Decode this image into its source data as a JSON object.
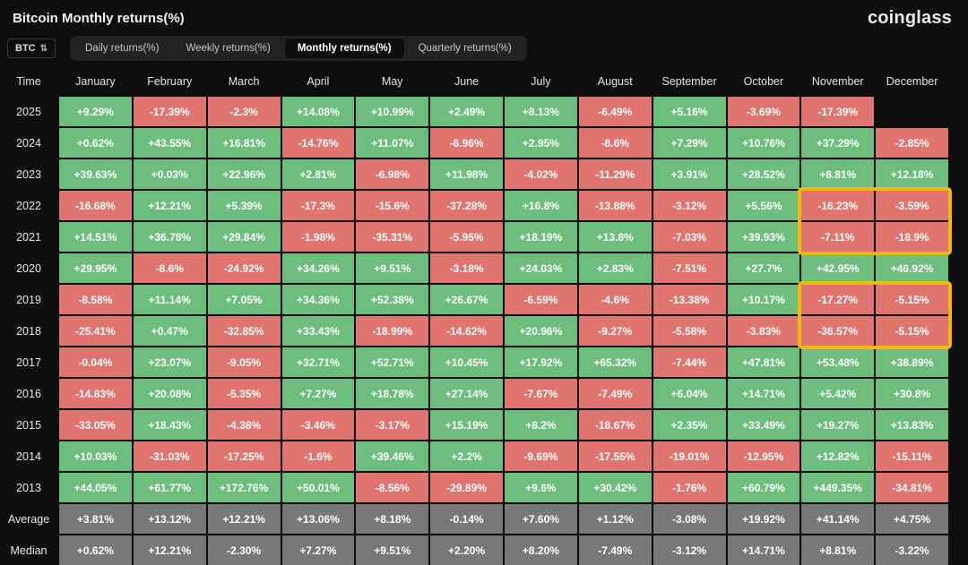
{
  "header": {
    "title": "Bitcoin Monthly returns(%)",
    "logo": "coinglass"
  },
  "controls": {
    "symbol": "BTC",
    "tabs": [
      {
        "label": "Daily returns(%)",
        "active": false
      },
      {
        "label": "Weekly returns(%)",
        "active": false
      },
      {
        "label": "Monthly returns(%)",
        "active": true
      },
      {
        "label": "Quarterly returns(%)",
        "active": false
      }
    ]
  },
  "colors": {
    "positive": "#6dbd7d",
    "negative": "#e0746e",
    "summary": "#787878",
    "highlight": "#f0b90b"
  },
  "table": {
    "type": "table",
    "columns": [
      "Time",
      "January",
      "February",
      "March",
      "April",
      "May",
      "June",
      "July",
      "August",
      "September",
      "October",
      "November",
      "December"
    ],
    "rows": [
      {
        "label": "2025",
        "values": [
          "+9.29%",
          "-17.39%",
          "-2.3%",
          "+14.08%",
          "+10.99%",
          "+2.49%",
          "+8.13%",
          "-6.49%",
          "+5.16%",
          "-3.69%",
          "-17.39%",
          ""
        ]
      },
      {
        "label": "2024",
        "values": [
          "+0.62%",
          "+43.55%",
          "+16.81%",
          "-14.76%",
          "+11.07%",
          "-6.96%",
          "+2.95%",
          "-8.6%",
          "+7.29%",
          "+10.76%",
          "+37.29%",
          "-2.85%"
        ]
      },
      {
        "label": "2023",
        "values": [
          "+39.63%",
          "+0.03%",
          "+22.96%",
          "+2.81%",
          "-6.98%",
          "+11.98%",
          "-4.02%",
          "-11.29%",
          "+3.91%",
          "+28.52%",
          "+8.81%",
          "+12.18%"
        ]
      },
      {
        "label": "2022",
        "values": [
          "-16.68%",
          "+12.21%",
          "+5.39%",
          "-17.3%",
          "-15.6%",
          "-37.28%",
          "+16.8%",
          "-13.88%",
          "-3.12%",
          "+5.56%",
          "-16.23%",
          "-3.59%"
        ]
      },
      {
        "label": "2021",
        "values": [
          "+14.51%",
          "+36.78%",
          "+29.84%",
          "-1.98%",
          "-35.31%",
          "-5.95%",
          "+18.19%",
          "+13.8%",
          "-7.03%",
          "+39.93%",
          "-7.11%",
          "-18.9%"
        ]
      },
      {
        "label": "2020",
        "values": [
          "+29.95%",
          "-8.6%",
          "-24.92%",
          "+34.26%",
          "+9.51%",
          "-3.18%",
          "+24.03%",
          "+2.83%",
          "-7.51%",
          "+27.7%",
          "+42.95%",
          "+46.92%"
        ]
      },
      {
        "label": "2019",
        "values": [
          "-8.58%",
          "+11.14%",
          "+7.05%",
          "+34.36%",
          "+52.38%",
          "+26.67%",
          "-6.59%",
          "-4.6%",
          "-13.38%",
          "+10.17%",
          "-17.27%",
          "-5.15%"
        ]
      },
      {
        "label": "2018",
        "values": [
          "-25.41%",
          "+0.47%",
          "-32.85%",
          "+33.43%",
          "-18.99%",
          "-14.62%",
          "+20.96%",
          "-9.27%",
          "-5.58%",
          "-3.83%",
          "-36.57%",
          "-5.15%"
        ]
      },
      {
        "label": "2017",
        "values": [
          "-0.04%",
          "+23.07%",
          "-9.05%",
          "+32.71%",
          "+52.71%",
          "+10.45%",
          "+17.92%",
          "+65.32%",
          "-7.44%",
          "+47.81%",
          "+53.48%",
          "+38.89%"
        ]
      },
      {
        "label": "2016",
        "values": [
          "-14.83%",
          "+20.08%",
          "-5.35%",
          "+7.27%",
          "+18.78%",
          "+27.14%",
          "-7.67%",
          "-7.49%",
          "+6.04%",
          "+14.71%",
          "+5.42%",
          "+30.8%"
        ]
      },
      {
        "label": "2015",
        "values": [
          "-33.05%",
          "+18.43%",
          "-4.38%",
          "-3.46%",
          "-3.17%",
          "+15.19%",
          "+8.2%",
          "-18.67%",
          "+2.35%",
          "+33.49%",
          "+19.27%",
          "+13.83%"
        ]
      },
      {
        "label": "2014",
        "values": [
          "+10.03%",
          "-31.03%",
          "-17.25%",
          "-1.6%",
          "+39.46%",
          "+2.2%",
          "-9.69%",
          "-17.55%",
          "-19.01%",
          "-12.95%",
          "+12.82%",
          "-15.11%"
        ]
      },
      {
        "label": "2013",
        "values": [
          "+44.05%",
          "+61.77%",
          "+172.76%",
          "+50.01%",
          "-8.56%",
          "-29.89%",
          "+9.6%",
          "+30.42%",
          "-1.76%",
          "+60.79%",
          "+449.35%",
          "-34.81%"
        ]
      },
      {
        "label": "Average",
        "type": "summary",
        "values": [
          "+3.81%",
          "+13.12%",
          "+12.21%",
          "+13.06%",
          "+8.18%",
          "-0.14%",
          "+7.60%",
          "+1.12%",
          "-3.08%",
          "+19.92%",
          "+41.14%",
          "+4.75%"
        ]
      },
      {
        "label": "Median",
        "type": "summary",
        "values": [
          "+0.62%",
          "+12.21%",
          "-2.30%",
          "+7.27%",
          "+9.51%",
          "+2.20%",
          "+8.20%",
          "-7.49%",
          "-3.12%",
          "+14.71%",
          "+8.81%",
          "-3.22%"
        ]
      }
    ]
  },
  "highlights": [
    {
      "rows": [
        "2022",
        "2021"
      ],
      "cols": [
        "November",
        "December"
      ]
    },
    {
      "rows": [
        "2019",
        "2018"
      ],
      "cols": [
        "November",
        "December"
      ]
    }
  ]
}
